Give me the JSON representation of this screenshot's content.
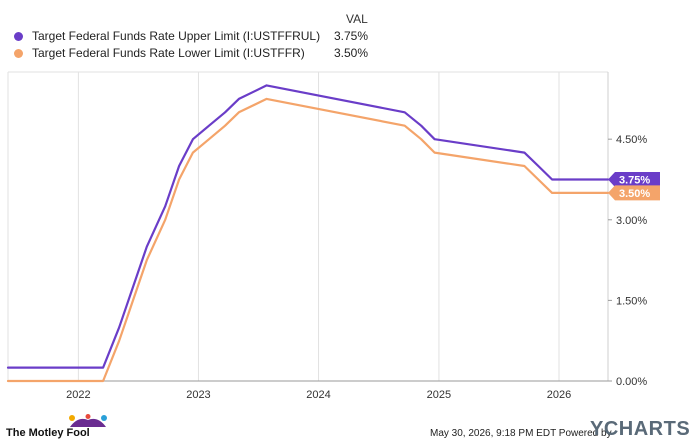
{
  "legend": {
    "header": "VAL",
    "items": [
      {
        "name": "Target Federal Funds Rate Upper Limit (I:USTFFRUL)",
        "value": "3.75%",
        "color": "#6a3dc8"
      },
      {
        "name": "Target Federal Funds Rate Lower Limit (I:USTFFR)",
        "value": "3.50%",
        "color": "#f4a46a"
      }
    ]
  },
  "chart_data": {
    "type": "line",
    "x_domain": [
      "2021-06-01",
      "2026-05-30"
    ],
    "y_domain": [
      0,
      5.75
    ],
    "x_ticks": [
      {
        "date": "2022-01-01",
        "label": "2022"
      },
      {
        "date": "2023-01-01",
        "label": "2023"
      },
      {
        "date": "2024-01-01",
        "label": "2024"
      },
      {
        "date": "2025-01-01",
        "label": "2025"
      },
      {
        "date": "2026-01-01",
        "label": "2026"
      }
    ],
    "y_ticks": [
      {
        "value": 0,
        "label": "0.00%"
      },
      {
        "value": 1.5,
        "label": "1.50%"
      },
      {
        "value": 3.0,
        "label": "3.00%"
      },
      {
        "value": 4.5,
        "label": "4.50%"
      }
    ],
    "grid": {
      "vertical": true,
      "horizontal": false
    },
    "series": [
      {
        "name": "Target Federal Funds Rate Upper Limit (I:USTFFRUL)",
        "color": "#6a3dc8",
        "end_label": "3.75%",
        "points": [
          [
            "2021-06-01",
            0.25
          ],
          [
            "2022-03-17",
            0.25
          ],
          [
            "2022-05-05",
            1.0
          ],
          [
            "2022-06-16",
            1.75
          ],
          [
            "2022-07-28",
            2.5
          ],
          [
            "2022-09-22",
            3.25
          ],
          [
            "2022-11-03",
            4.0
          ],
          [
            "2022-12-15",
            4.5
          ],
          [
            "2023-02-02",
            4.75
          ],
          [
            "2023-03-23",
            5.0
          ],
          [
            "2023-05-04",
            5.25
          ],
          [
            "2023-07-27",
            5.5
          ],
          [
            "2024-09-19",
            5.0
          ],
          [
            "2024-11-08",
            4.75
          ],
          [
            "2024-12-19",
            4.5
          ],
          [
            "2025-09-18",
            4.25
          ],
          [
            "2025-10-30",
            4.0
          ],
          [
            "2025-12-11",
            3.75
          ],
          [
            "2026-05-30",
            3.75
          ]
        ]
      },
      {
        "name": "Target Federal Funds Rate Lower Limit (I:USTFFR)",
        "color": "#f4a46a",
        "end_label": "3.50%",
        "points": [
          [
            "2021-06-01",
            0.0
          ],
          [
            "2022-03-17",
            0.0
          ],
          [
            "2022-05-05",
            0.75
          ],
          [
            "2022-06-16",
            1.5
          ],
          [
            "2022-07-28",
            2.25
          ],
          [
            "2022-09-22",
            3.0
          ],
          [
            "2022-11-03",
            3.75
          ],
          [
            "2022-12-15",
            4.25
          ],
          [
            "2023-02-02",
            4.5
          ],
          [
            "2023-03-23",
            4.75
          ],
          [
            "2023-05-04",
            5.0
          ],
          [
            "2023-07-27",
            5.25
          ],
          [
            "2024-09-19",
            4.75
          ],
          [
            "2024-11-08",
            4.5
          ],
          [
            "2024-12-19",
            4.25
          ],
          [
            "2025-09-18",
            4.0
          ],
          [
            "2025-10-30",
            3.75
          ],
          [
            "2025-12-11",
            3.5
          ],
          [
            "2026-05-30",
            3.5
          ]
        ]
      }
    ]
  },
  "footer": {
    "brand": "The Motley Fool",
    "timestamp": "May 30, 2026, 9:18 PM EDT Powered by",
    "logo": "YCHARTS"
  }
}
